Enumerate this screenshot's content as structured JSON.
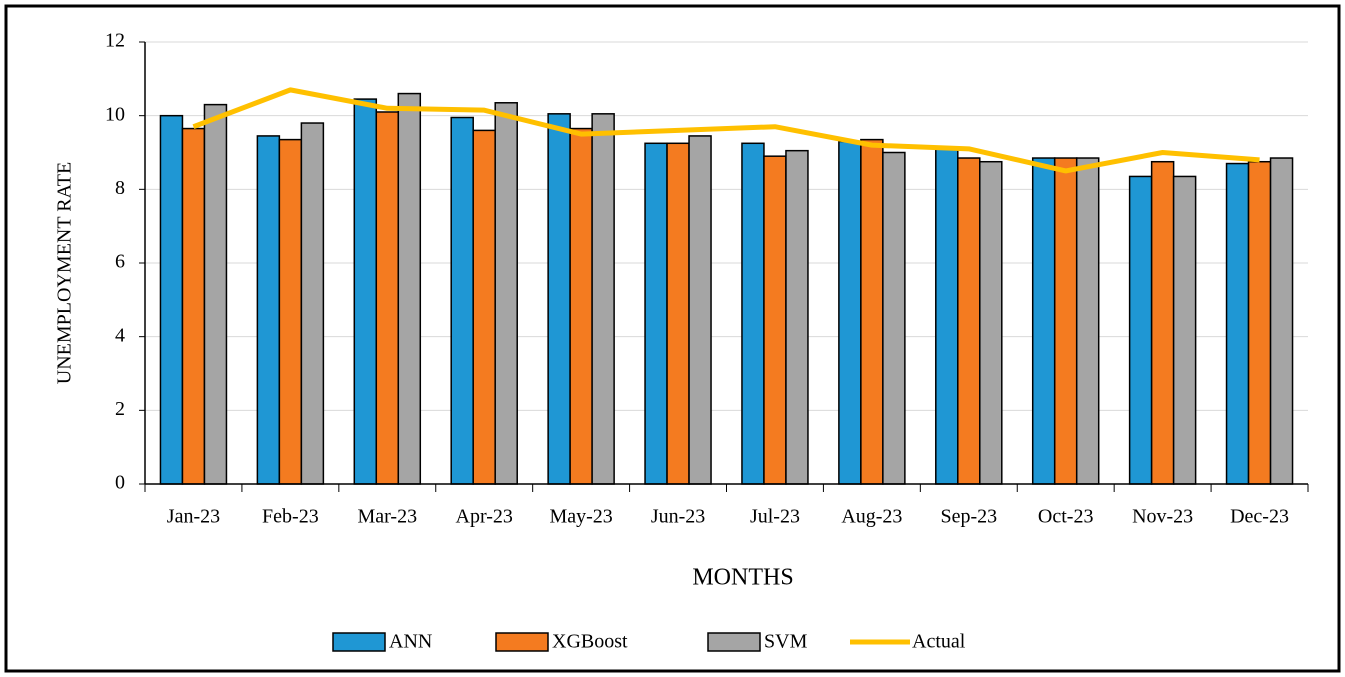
{
  "chart_data": {
    "type": "bar",
    "xlabel": "MONTHS",
    "ylabel": "UNEMPLOYMENT RATE",
    "categories": [
      "Jan-23",
      "Feb-23",
      "Mar-23",
      "Apr-23",
      "May-23",
      "Jun-23",
      "Jul-23",
      "Aug-23",
      "Sep-23",
      "Oct-23",
      "Nov-23",
      "Dec-23"
    ],
    "series": [
      {
        "name": "ANN",
        "color": "#1f97d4",
        "values": [
          10.0,
          9.45,
          10.45,
          9.95,
          10.05,
          9.25,
          9.25,
          9.3,
          9.15,
          8.85,
          8.35,
          8.7
        ]
      },
      {
        "name": "XGBoost",
        "color": "#f47b20",
        "values": [
          9.65,
          9.35,
          10.1,
          9.6,
          9.65,
          9.25,
          8.9,
          9.35,
          8.85,
          8.85,
          8.75,
          8.75
        ]
      },
      {
        "name": "SVM",
        "color": "#a5a5a5",
        "values": [
          10.3,
          9.8,
          10.6,
          10.35,
          10.05,
          9.45,
          9.05,
          9.0,
          8.75,
          8.85,
          8.35,
          8.85
        ]
      },
      {
        "name": "Actual",
        "color": "#ffc000",
        "type": "line",
        "values": [
          9.7,
          10.7,
          10.2,
          10.15,
          9.5,
          9.6,
          9.7,
          9.2,
          9.1,
          8.5,
          9.0,
          8.8
        ]
      }
    ],
    "ylim": [
      0,
      12
    ],
    "yticks": [
      0,
      2,
      4,
      6,
      8,
      10,
      12
    ],
    "grid": true,
    "legend": "bottom"
  }
}
